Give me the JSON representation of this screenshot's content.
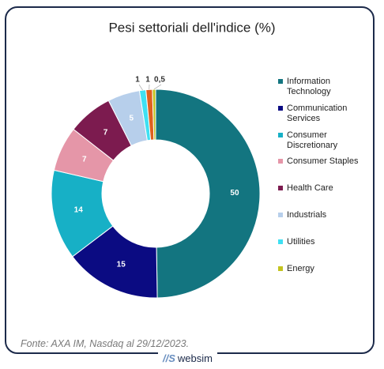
{
  "chart_data": {
    "type": "donut",
    "title": "Pesi settoriali dell'indice (%)",
    "categories": [
      "Information Technology",
      "Communication Services",
      "Consumer Discretionary",
      "Consumer Staples",
      "Health Care",
      "Industrials",
      "Utilities",
      null,
      "Energy"
    ],
    "values": [
      50,
      15,
      14,
      7,
      7,
      5,
      1,
      1,
      0.5
    ],
    "value_labels": [
      "50",
      "15",
      "14",
      "7",
      "7",
      "5",
      "1",
      "1",
      "0,5"
    ],
    "colors": [
      "#137580",
      "#0b0b82",
      "#17b0c6",
      "#e596a8",
      "#7c1b4f",
      "#b7cfeb",
      "#3fe0f2",
      "#e0601f",
      "#c3c31e"
    ],
    "legend": "right",
    "source": "Fonte: AXA IM, Nasdaq al 29/12/2023.",
    "logo": "websim"
  }
}
